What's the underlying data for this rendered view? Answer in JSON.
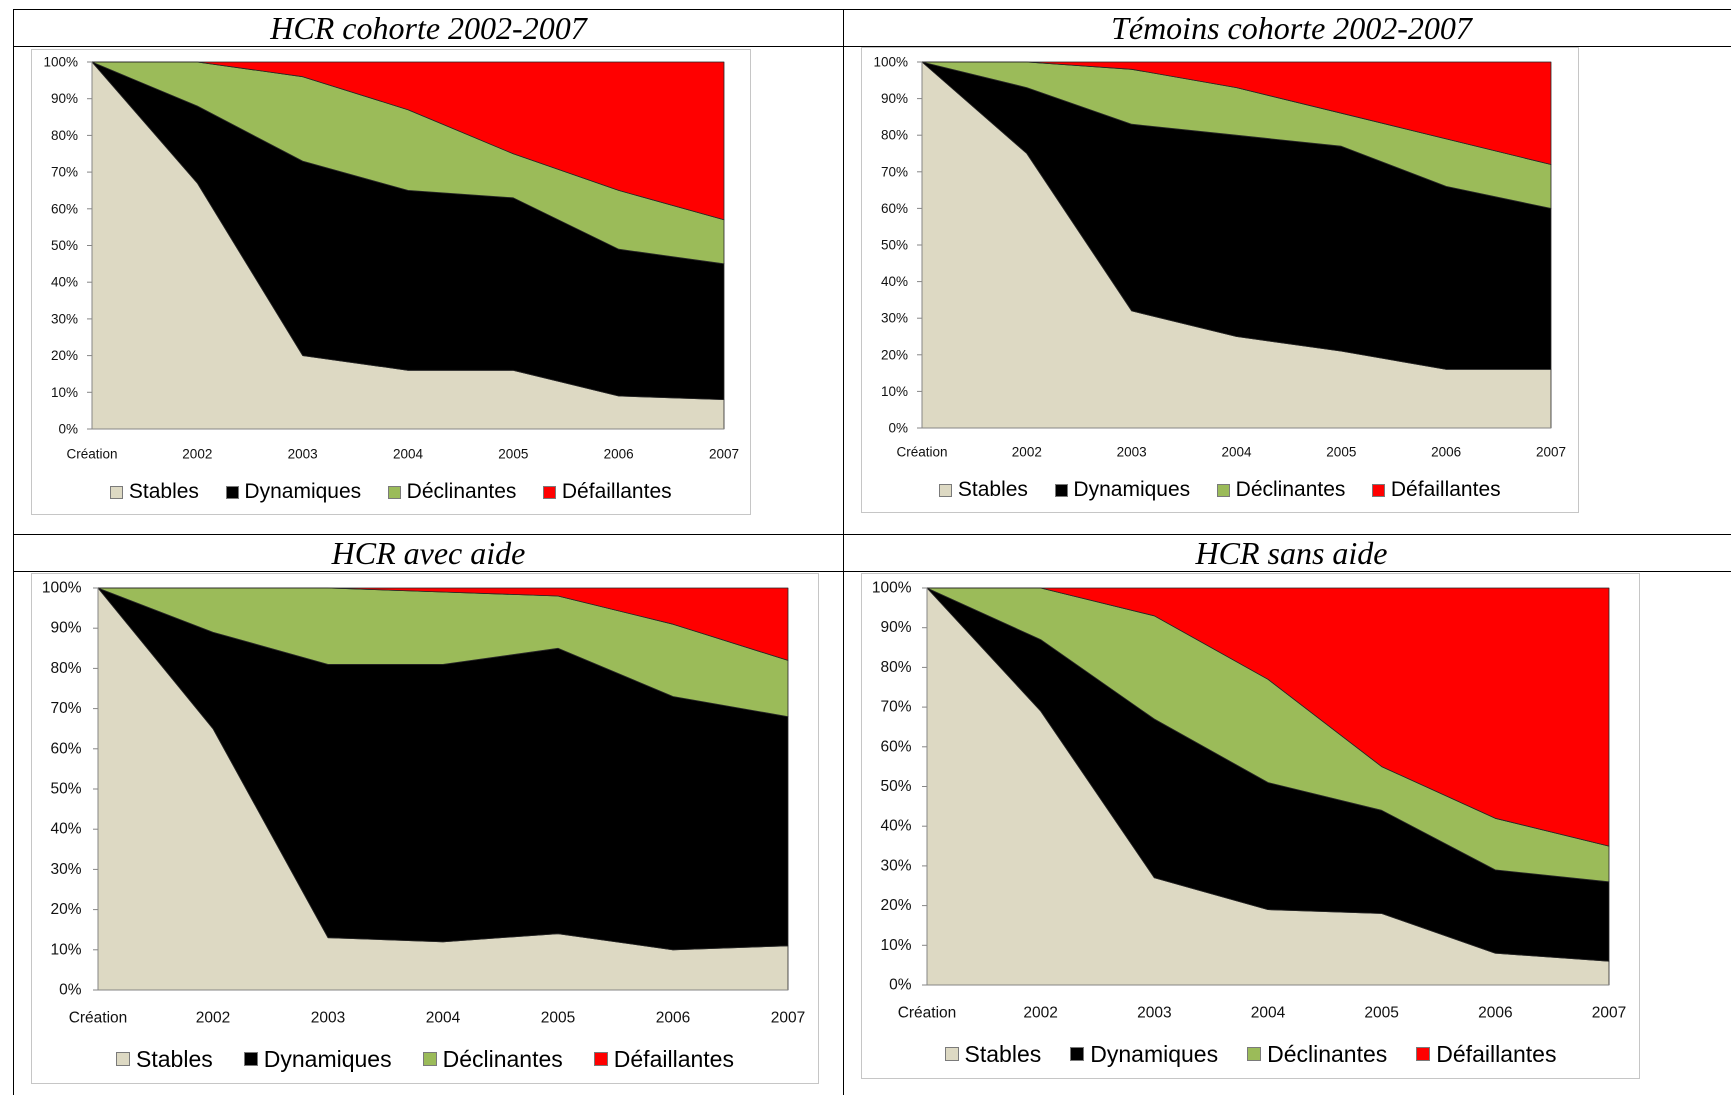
{
  "chart_data": [
    {
      "type": "area",
      "stacked": "percent",
      "title": "HCR cohorte 2002-2007",
      "categories": [
        "Création",
        "2002",
        "2003",
        "2004",
        "2005",
        "2006",
        "2007"
      ],
      "ylim": [
        0,
        100
      ],
      "y_tick_labels": [
        "0%",
        "10%",
        "20%",
        "30%",
        "40%",
        "50%",
        "60%",
        "70%",
        "80%",
        "90%",
        "100%"
      ],
      "grid": false,
      "legend_position": "bottom",
      "series": [
        {
          "name": "Stables",
          "color": "#DDD9C3",
          "values": [
            100,
            67,
            20,
            16,
            16,
            9,
            8
          ]
        },
        {
          "name": "Dynamiques",
          "color": "#000000",
          "values": [
            0,
            21,
            53,
            49,
            47,
            40,
            37
          ]
        },
        {
          "name": "Déclinantes",
          "color": "#9BBB59",
          "values": [
            0,
            12,
            23,
            22,
            12,
            16,
            12
          ]
        },
        {
          "name": "Défaillantes",
          "color": "#FF0000",
          "values": [
            0,
            0,
            4,
            13,
            25,
            35,
            43
          ]
        }
      ]
    },
    {
      "type": "area",
      "stacked": "percent",
      "title": "Témoins cohorte 2002-2007",
      "categories": [
        "Création",
        "2002",
        "2003",
        "2004",
        "2005",
        "2006",
        "2007"
      ],
      "ylim": [
        0,
        100
      ],
      "y_tick_labels": [
        "0%",
        "10%",
        "20%",
        "30%",
        "40%",
        "50%",
        "60%",
        "70%",
        "80%",
        "90%",
        "100%"
      ],
      "grid": false,
      "legend_position": "bottom",
      "series": [
        {
          "name": "Stables",
          "color": "#DDD9C3",
          "values": [
            100,
            75,
            32,
            25,
            21,
            16,
            16
          ]
        },
        {
          "name": "Dynamiques",
          "color": "#000000",
          "values": [
            0,
            18,
            51,
            55,
            56,
            50,
            44
          ]
        },
        {
          "name": "Déclinantes",
          "color": "#9BBB59",
          "values": [
            0,
            7,
            15,
            13,
            9,
            13,
            12
          ]
        },
        {
          "name": "Défaillantes",
          "color": "#FF0000",
          "values": [
            0,
            0,
            2,
            7,
            14,
            21,
            28
          ]
        }
      ]
    },
    {
      "type": "area",
      "stacked": "percent",
      "title": "HCR avec aide",
      "categories": [
        "Création",
        "2002",
        "2003",
        "2004",
        "2005",
        "2006",
        "2007"
      ],
      "ylim": [
        0,
        100
      ],
      "y_tick_labels": [
        "0%",
        "10%",
        "20%",
        "30%",
        "40%",
        "50%",
        "60%",
        "70%",
        "80%",
        "90%",
        "100%"
      ],
      "grid": false,
      "legend_position": "bottom",
      "series": [
        {
          "name": "Stables",
          "color": "#DDD9C3",
          "values": [
            100,
            65,
            13,
            12,
            14,
            10,
            11
          ]
        },
        {
          "name": "Dynamiques",
          "color": "#000000",
          "values": [
            0,
            24,
            68,
            69,
            71,
            63,
            57
          ]
        },
        {
          "name": "Déclinantes",
          "color": "#9BBB59",
          "values": [
            0,
            11,
            19,
            18,
            13,
            18,
            14
          ]
        },
        {
          "name": "Défaillantes",
          "color": "#FF0000",
          "values": [
            0,
            0,
            0,
            1,
            2,
            9,
            18
          ]
        }
      ]
    },
    {
      "type": "area",
      "stacked": "percent",
      "title": "HCR sans aide",
      "categories": [
        "Création",
        "2002",
        "2003",
        "2004",
        "2005",
        "2006",
        "2007"
      ],
      "ylim": [
        0,
        100
      ],
      "y_tick_labels": [
        "0%",
        "10%",
        "20%",
        "30%",
        "40%",
        "50%",
        "60%",
        "70%",
        "80%",
        "90%",
        "100%"
      ],
      "grid": false,
      "legend_position": "bottom",
      "series": [
        {
          "name": "Stables",
          "color": "#DDD9C3",
          "values": [
            100,
            69,
            27,
            19,
            18,
            8,
            6
          ]
        },
        {
          "name": "Dynamiques",
          "color": "#000000",
          "values": [
            0,
            18,
            40,
            32,
            26,
            21,
            20
          ]
        },
        {
          "name": "Déclinantes",
          "color": "#9BBB59",
          "values": [
            0,
            13,
            26,
            26,
            11,
            13,
            9
          ]
        },
        {
          "name": "Défaillantes",
          "color": "#FF0000",
          "values": [
            0,
            0,
            7,
            23,
            45,
            58,
            65
          ]
        }
      ]
    }
  ]
}
